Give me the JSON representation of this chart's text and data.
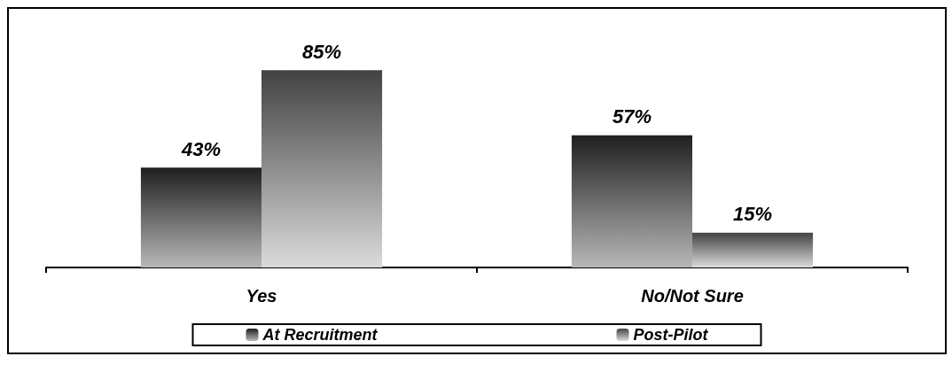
{
  "chart_data": {
    "type": "bar",
    "categories": [
      "Yes",
      "No/Not Sure"
    ],
    "series": [
      {
        "name": "At Recruitment",
        "color": "#4d4d4d",
        "values": [
          43,
          57
        ],
        "value_labels": [
          "43%",
          "57%"
        ]
      },
      {
        "name": "Post-Pilot",
        "color": "#a6a6a6",
        "values": [
          85,
          15
        ],
        "value_labels": [
          "85%",
          "15%"
        ]
      }
    ],
    "legend": "bottom"
  }
}
